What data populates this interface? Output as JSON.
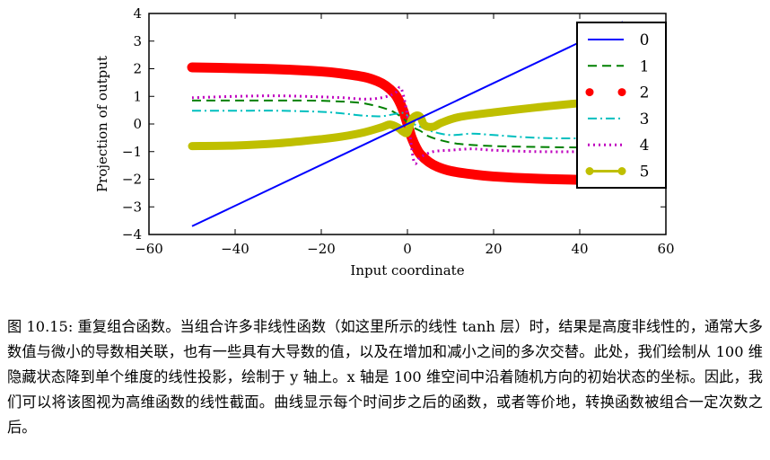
{
  "chart_data": {
    "type": "line",
    "title": "",
    "xlabel": "Input coordinate",
    "ylabel": "Projection of output",
    "xlim": [
      -60,
      60
    ],
    "ylim": [
      -4,
      4
    ],
    "xticks": [
      -60,
      -40,
      -20,
      0,
      20,
      40,
      60
    ],
    "yticks": [
      -4,
      -3,
      -2,
      -1,
      0,
      1,
      2,
      3,
      4
    ],
    "xtick_labels": [
      "−60",
      "−40",
      "−20",
      "0",
      "20",
      "40",
      "60"
    ],
    "ytick_labels": [
      "−4",
      "−3",
      "−2",
      "−1",
      "0",
      "1",
      "2",
      "3",
      "4"
    ],
    "grid": false,
    "legend": "top-right",
    "series": [
      {
        "name": "0",
        "color": "#0000ff",
        "style": "solid",
        "x": [
          -50,
          50
        ],
        "y": [
          -3.7,
          3.7
        ]
      },
      {
        "name": "1",
        "color": "#008000",
        "style": "dashed",
        "x": [
          -50,
          -40,
          -30,
          -20,
          -12,
          -8,
          -5,
          -3,
          -1,
          0,
          1,
          3,
          5,
          8,
          12,
          20,
          30,
          40,
          50
        ],
        "y": [
          0.85,
          0.85,
          0.85,
          0.84,
          0.78,
          0.68,
          0.55,
          0.42,
          0.2,
          0.05,
          -0.1,
          -0.25,
          -0.45,
          -0.6,
          -0.72,
          -0.8,
          -0.83,
          -0.85,
          -0.85
        ]
      },
      {
        "name": "2",
        "color": "#ff0000",
        "style": "dots",
        "x": [
          -50,
          -40,
          -30,
          -20,
          -15,
          -10,
          -7,
          -5,
          -3,
          -2,
          -1,
          -0.5,
          0,
          0.5,
          1,
          2,
          3,
          5,
          7,
          10,
          15,
          20,
          30,
          40,
          50
        ],
        "y": [
          2.05,
          2.02,
          1.98,
          1.9,
          1.82,
          1.7,
          1.55,
          1.38,
          1.1,
          0.85,
          0.5,
          0.25,
          0.0,
          -0.25,
          -0.5,
          -0.85,
          -1.1,
          -1.38,
          -1.55,
          -1.7,
          -1.82,
          -1.9,
          -1.98,
          -2.02,
          -2.05
        ]
      },
      {
        "name": "3",
        "color": "#00bfbf",
        "style": "dashdot",
        "x": [
          -50,
          -40,
          -30,
          -20,
          -15,
          -10,
          -6,
          -3,
          -1,
          0,
          1,
          3,
          6,
          10,
          15,
          20,
          30,
          40,
          50
        ],
        "y": [
          0.48,
          0.48,
          0.48,
          0.44,
          0.38,
          0.3,
          0.28,
          0.36,
          0.4,
          0.3,
          0.05,
          -0.1,
          -0.28,
          -0.4,
          -0.35,
          -0.4,
          -0.5,
          -0.52,
          -0.5
        ]
      },
      {
        "name": "4",
        "color": "#bf00bf",
        "style": "dotted",
        "x": [
          -50,
          -40,
          -30,
          -20,
          -15,
          -10,
          -6,
          -3,
          -1.5,
          0,
          1.5,
          3,
          6,
          10,
          15,
          20,
          30,
          40,
          50
        ],
        "y": [
          0.95,
          1.0,
          1.02,
          0.98,
          0.95,
          0.9,
          0.95,
          1.1,
          1.3,
          0.3,
          -1.35,
          -1.2,
          -1.0,
          -0.95,
          -0.9,
          -0.95,
          -1.0,
          -1.0,
          -0.95
        ]
      },
      {
        "name": "5",
        "color": "#bfbf00",
        "style": "thick-dots",
        "x": [
          -50,
          -40,
          -30,
          -20,
          -15,
          -10,
          -6,
          -4,
          -2,
          -1,
          0,
          1,
          2,
          3,
          4,
          6,
          8,
          12,
          20,
          30,
          40,
          50
        ],
        "y": [
          -0.8,
          -0.78,
          -0.7,
          -0.55,
          -0.45,
          -0.3,
          -0.12,
          -0.02,
          -0.15,
          -0.28,
          -0.3,
          0.15,
          0.3,
          0.25,
          -0.05,
          -0.1,
          0.05,
          0.25,
          0.42,
          0.6,
          0.75,
          0.82
        ]
      }
    ]
  },
  "caption": {
    "figure_label": "图 10.15:",
    "text": "重复组合函数。当组合许多非线性函数（如这里所示的线性 tanh 层）时，结果是高度非线性的，通常大多数值与微小的导数相关联，也有一些具有大导数的值，以及在增加和减小之间的多次交替。此处，我们绘制从 100 维隐藏状态降到单个维度的线性投影，绘制于 y 轴上。x 轴是 100 维空间中沿着随机方向的初始状态的坐标。因此，我们可以将该图视为高维函数的线性截面。曲线显示每个时间步之后的函数，或者等价地，转换函数被组合一定次数之后。"
  }
}
